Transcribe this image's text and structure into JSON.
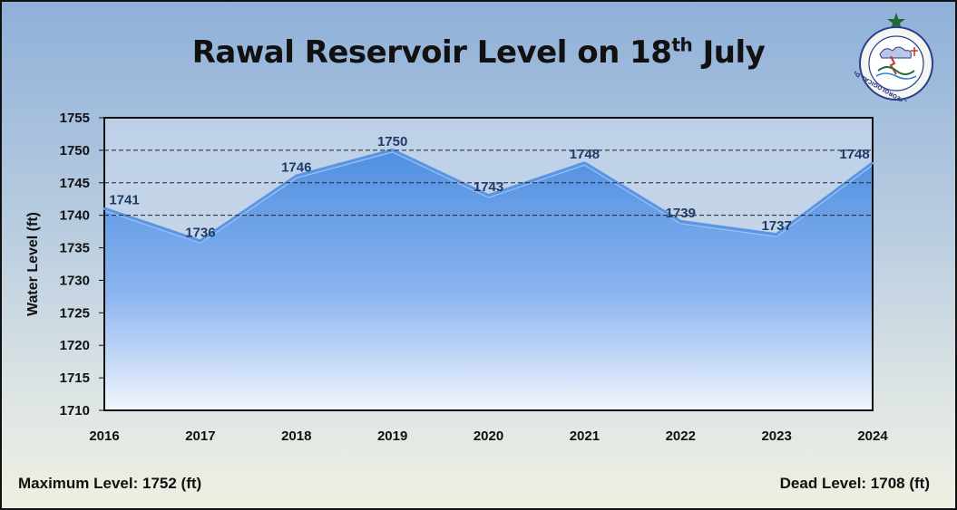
{
  "chart_data": {
    "type": "area",
    "title_main": "Rawal Reservoir Level on 18",
    "title_sup": "th",
    "title_end": " July",
    "xlabel": "",
    "ylabel": "Water Level (ft)",
    "categories": [
      "2016",
      "2017",
      "2018",
      "2019",
      "2020",
      "2021",
      "2022",
      "2023",
      "2024"
    ],
    "values": [
      1741,
      1736,
      1746,
      1750,
      1743,
      1748,
      1739,
      1737,
      1748
    ],
    "ylim": [
      1710,
      1755
    ],
    "yticks": [
      1710,
      1715,
      1720,
      1725,
      1730,
      1735,
      1740,
      1745,
      1750,
      1755
    ],
    "gridlines": [
      1740,
      1745,
      1750
    ],
    "grid": "dashed at 1740, 1745, 1750"
  },
  "footer": {
    "max_level": "Maximum Level: 1752 (ft)",
    "dead_level": "Dead Level: 1708 (ft)"
  },
  "logo": {
    "name": "Pakistan Meteorological Department emblem",
    "text": "PAKISTAN METEOROLOGICAL DEPARTMENT"
  },
  "colors": {
    "area_top": "#4f8fe0",
    "area_bottom": "#f2f6fd",
    "line": "#5b96e6",
    "label": "#1f3b66"
  }
}
